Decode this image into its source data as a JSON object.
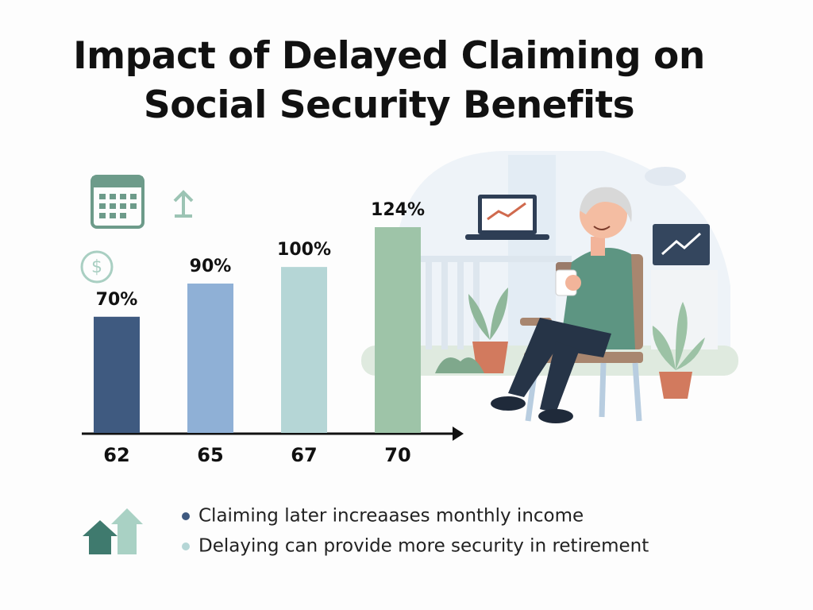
{
  "chart_data": {
    "type": "bar",
    "title": "Impact of Delayed Claiming on Social Security Benefits",
    "categories": [
      "62",
      "65",
      "67",
      "70"
    ],
    "values": [
      70,
      90,
      100,
      124
    ],
    "value_labels": [
      "70%",
      "90%",
      "100%",
      "124%"
    ],
    "colors": [
      "#3f5a80",
      "#8fb0d6",
      "#b5d6d6",
      "#9ec4a8"
    ],
    "notes": [
      "Claiming later increaases monthly income",
      "Delaying can provide more security in retirement"
    ],
    "note_colors": [
      "#3f5a80",
      "#b5d6d6"
    ]
  }
}
